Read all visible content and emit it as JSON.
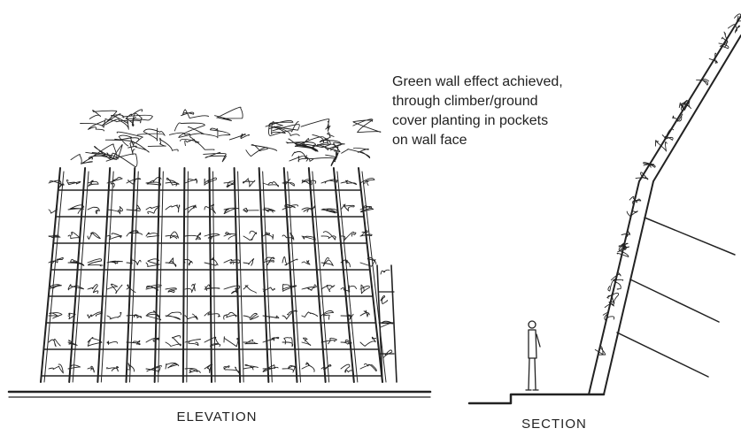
{
  "annotation": {
    "lines": [
      "Green wall effect achieved,",
      "through climber/ground",
      "cover planting in pockets",
      "on wall face"
    ]
  },
  "elevation": {
    "label": "ELEVATION"
  },
  "section": {
    "label": "SECTION"
  }
}
